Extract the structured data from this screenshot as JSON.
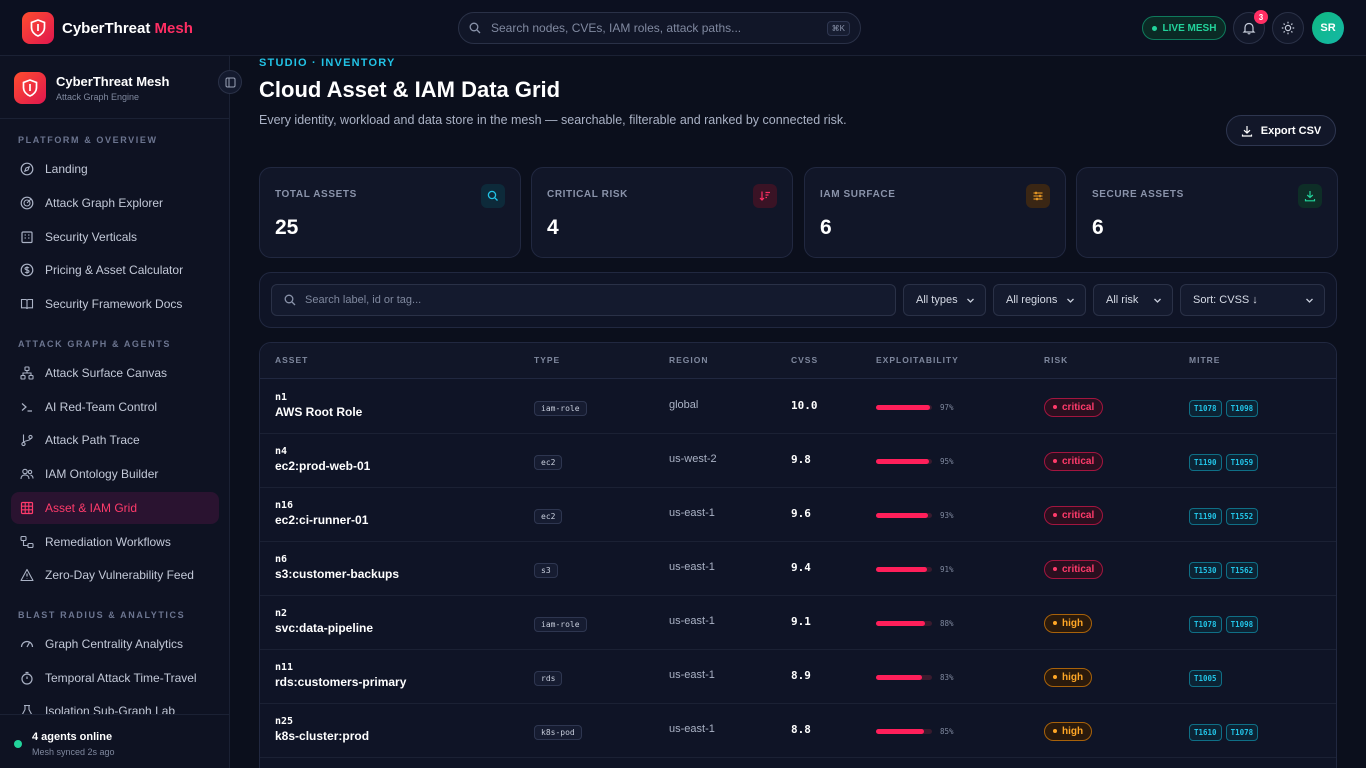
{
  "app": {
    "brand_main": "CyberThreat ",
    "brand_accent": "Mesh",
    "search_placeholder": "Search nodes, CVEs, IAM roles, attack paths...",
    "search_kbd": "⌘K",
    "live_label": "LIVE MESH",
    "notification_count": "3",
    "avatar_initials": "SR"
  },
  "sidebar": {
    "title": "CyberThreat Mesh",
    "subtitle": "Attack Graph Engine",
    "sections": [
      {
        "title": "PLATFORM & OVERVIEW",
        "items": [
          {
            "label": "Landing",
            "icon": "compass-icon"
          },
          {
            "label": "Attack Graph Explorer",
            "icon": "radar-icon"
          },
          {
            "label": "Security Verticals",
            "icon": "building-icon"
          },
          {
            "label": "Pricing & Asset Calculator",
            "icon": "dollar-icon"
          },
          {
            "label": "Security Framework Docs",
            "icon": "book-icon"
          }
        ]
      },
      {
        "title": "ATTACK GRAPH & AGENTS",
        "items": [
          {
            "label": "Attack Surface Canvas",
            "icon": "network-icon"
          },
          {
            "label": "AI Red-Team Control",
            "icon": "terminal-icon"
          },
          {
            "label": "Attack Path Trace",
            "icon": "git-branch-icon"
          },
          {
            "label": "IAM Ontology Builder",
            "icon": "users-icon"
          },
          {
            "label": "Asset & IAM Grid",
            "icon": "grid-icon",
            "active": true
          },
          {
            "label": "Remediation Workflows",
            "icon": "workflow-icon"
          },
          {
            "label": "Zero-Day Vulnerability Feed",
            "icon": "warning-icon"
          }
        ]
      },
      {
        "title": "BLAST RADIUS & ANALYTICS",
        "items": [
          {
            "label": "Graph Centrality Analytics",
            "icon": "gauge-icon"
          },
          {
            "label": "Temporal Attack Time-Travel",
            "icon": "timer-icon"
          },
          {
            "label": "Isolation Sub-Graph Lab",
            "icon": "flask-icon"
          }
        ]
      }
    ],
    "footer_title": "4 agents online",
    "footer_sub": "Mesh synced 2s ago"
  },
  "page": {
    "eyebrow": "STUDIO · INVENTORY",
    "title": "Cloud Asset & IAM Data Grid",
    "description": "Every identity, workload and data store in the mesh — searchable, filterable and ranked by connected risk.",
    "export_label": "Export CSV"
  },
  "stats": [
    {
      "label": "TOTAL ASSETS",
      "value": "25",
      "icon": "search-icon",
      "color": "#22c3e6"
    },
    {
      "label": "CRITICAL RISK",
      "value": "4",
      "icon": "sort-down-icon",
      "color": "#ff2e63"
    },
    {
      "label": "IAM SURFACE",
      "value": "6",
      "icon": "sliders-icon",
      "color": "#ffa726"
    },
    {
      "label": "SECURE ASSETS",
      "value": "6",
      "icon": "download-icon",
      "color": "#22d39b"
    }
  ],
  "filters": {
    "search_placeholder": "Search label, id or tag...",
    "type": "All types",
    "region": "All regions",
    "risk": "All risk",
    "sort": "Sort: CVSS ↓"
  },
  "grid": {
    "columns": [
      "ASSET",
      "TYPE",
      "REGION",
      "CVSS",
      "EXPLOITABILITY",
      "RISK",
      "MITRE"
    ],
    "rows": [
      {
        "id": "n1",
        "label": "AWS Root Role",
        "type": "iam-role",
        "region": "global",
        "cvss": "10.0",
        "exploit": 97,
        "exploit_label": "97%",
        "risk": "critical",
        "mitre": [
          "T1078",
          "T1098"
        ]
      },
      {
        "id": "n4",
        "label": "ec2:prod-web-01",
        "type": "ec2",
        "region": "us-west-2",
        "cvss": "9.8",
        "exploit": 95,
        "exploit_label": "95%",
        "risk": "critical",
        "mitre": [
          "T1190",
          "T1059"
        ]
      },
      {
        "id": "n16",
        "label": "ec2:ci-runner-01",
        "type": "ec2",
        "region": "us-east-1",
        "cvss": "9.6",
        "exploit": 93,
        "exploit_label": "93%",
        "risk": "critical",
        "mitre": [
          "T1190",
          "T1552"
        ]
      },
      {
        "id": "n6",
        "label": "s3:customer-backups",
        "type": "s3",
        "region": "us-east-1",
        "cvss": "9.4",
        "exploit": 91,
        "exploit_label": "91%",
        "risk": "critical",
        "mitre": [
          "T1530",
          "T1562"
        ]
      },
      {
        "id": "n2",
        "label": "svc:data-pipeline",
        "type": "iam-role",
        "region": "us-east-1",
        "cvss": "9.1",
        "exploit": 88,
        "exploit_label": "88%",
        "risk": "high",
        "mitre": [
          "T1078",
          "T1098"
        ]
      },
      {
        "id": "n11",
        "label": "rds:customers-primary",
        "type": "rds",
        "region": "us-east-1",
        "cvss": "8.9",
        "exploit": 83,
        "exploit_label": "83%",
        "risk": "high",
        "mitre": [
          "T1005"
        ]
      },
      {
        "id": "n25",
        "label": "k8s-cluster:prod",
        "type": "k8s-pod",
        "region": "us-east-1",
        "cvss": "8.8",
        "exploit": 85,
        "exploit_label": "85%",
        "risk": "high",
        "mitre": [
          "T1610",
          "T1078"
        ]
      }
    ]
  }
}
